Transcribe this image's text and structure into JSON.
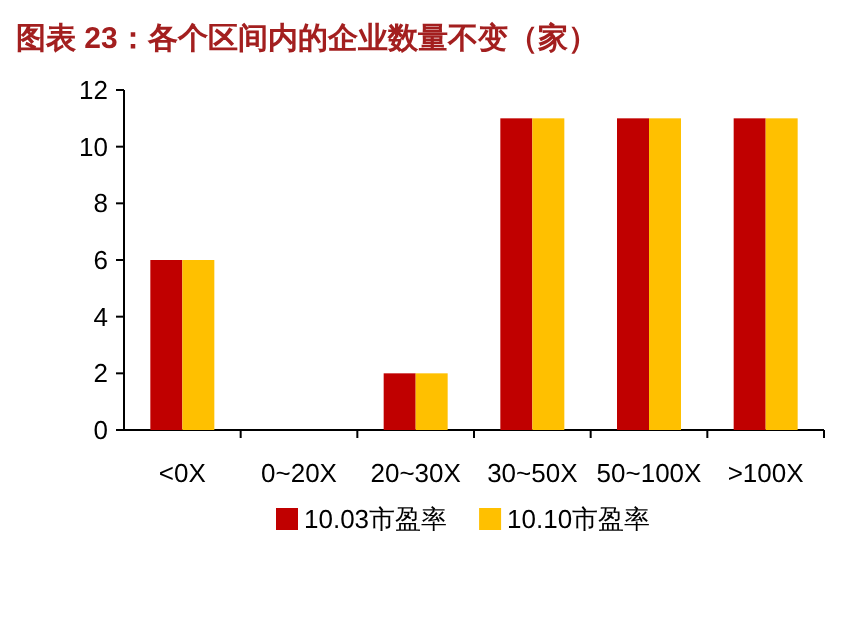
{
  "chart_data": {
    "type": "bar",
    "title": "图表 23：各个区间内的企业数量不变（家）",
    "categories": [
      "<0X",
      "0~20X",
      "20~30X",
      "30~50X",
      "50~100X",
      ">100X"
    ],
    "series": [
      {
        "name": "10.03市盈率",
        "color": "#c00000",
        "values": [
          6,
          0,
          2,
          11,
          11,
          11
        ]
      },
      {
        "name": "10.10市盈率",
        "color": "#ffc000",
        "values": [
          6,
          0,
          2,
          11,
          11,
          11
        ]
      }
    ],
    "ylim": [
      0,
      12
    ],
    "yticks": [
      0,
      2,
      4,
      6,
      8,
      10,
      12
    ],
    "legend": "bottom"
  }
}
